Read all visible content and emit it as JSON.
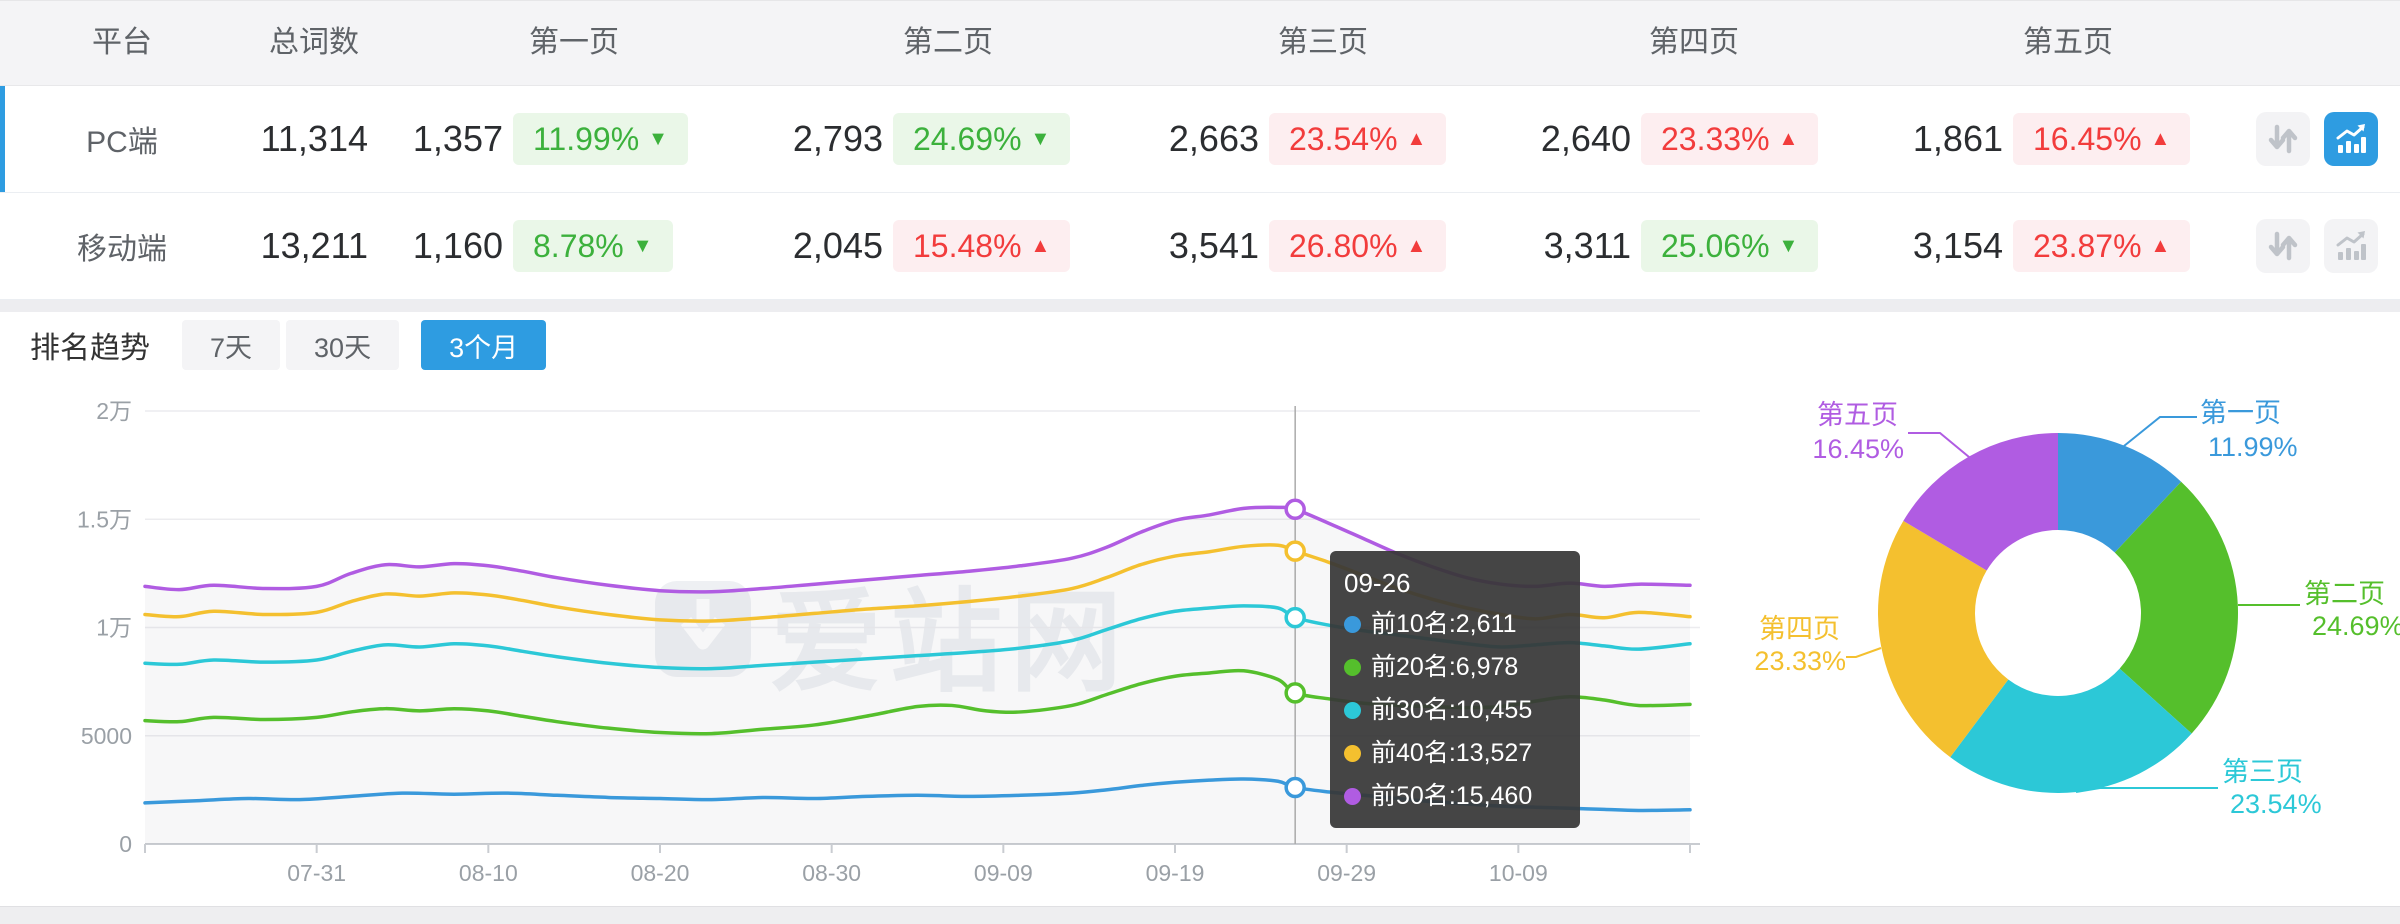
{
  "colors": {
    "accent": "#2e9ce1",
    "series_blue": "#3a99db",
    "series_green": "#55bf2c",
    "series_cyan": "#2cc8d7",
    "series_yellow": "#f4c02f",
    "series_purple": "#b05ce2",
    "badge_up_red": "#f23c3c",
    "badge_down_green": "#3cb13c"
  },
  "table": {
    "headers": [
      "平台",
      "总词数",
      "第一页",
      "第二页",
      "第三页",
      "第四页",
      "第五页"
    ],
    "rows": [
      {
        "platform": "PC端",
        "total": "11,314",
        "selected": true,
        "pages": [
          {
            "count": "1,357",
            "pct": "11.99%",
            "dir": "down",
            "tone": "green"
          },
          {
            "count": "2,793",
            "pct": "24.69%",
            "dir": "down",
            "tone": "green"
          },
          {
            "count": "2,663",
            "pct": "23.54%",
            "dir": "up",
            "tone": "red"
          },
          {
            "count": "2,640",
            "pct": "23.33%",
            "dir": "up",
            "tone": "red"
          },
          {
            "count": "1,861",
            "pct": "16.45%",
            "dir": "up",
            "tone": "red"
          }
        ]
      },
      {
        "platform": "移动端",
        "total": "13,211",
        "selected": false,
        "pages": [
          {
            "count": "1,160",
            "pct": "8.78%",
            "dir": "down",
            "tone": "green"
          },
          {
            "count": "2,045",
            "pct": "15.48%",
            "dir": "up",
            "tone": "red"
          },
          {
            "count": "3,541",
            "pct": "26.80%",
            "dir": "up",
            "tone": "red"
          },
          {
            "count": "3,311",
            "pct": "25.06%",
            "dir": "down",
            "tone": "green"
          },
          {
            "count": "3,154",
            "pct": "23.87%",
            "dir": "up",
            "tone": "red"
          }
        ]
      }
    ]
  },
  "trend_bar": {
    "label": "排名趋势",
    "tabs": [
      {
        "label": "7天",
        "active": false
      },
      {
        "label": "30天",
        "active": false
      },
      {
        "label": "3个月",
        "active": true
      }
    ]
  },
  "watermark": {
    "text": "爱站网"
  },
  "tooltip": {
    "date": "09-26",
    "rows": [
      {
        "name": "前10名",
        "value": "2,611"
      },
      {
        "name": "前20名",
        "value": "6,978"
      },
      {
        "name": "前30名",
        "value": "10,455"
      },
      {
        "name": "前40名",
        "value": "13,527"
      },
      {
        "name": "前50名",
        "value": "15,460"
      }
    ]
  },
  "chart_data": [
    {
      "type": "line",
      "title": "排名趋势 (3个月)",
      "x_unit": "day index from 07-21",
      "ylim": [
        0,
        20000
      ],
      "y_ticks": [
        "0",
        "5000",
        "1万",
        "1.5万",
        "2万"
      ],
      "x_ticks": [
        {
          "label": "07-31",
          "day": 10
        },
        {
          "label": "08-10",
          "day": 20
        },
        {
          "label": "08-20",
          "day": 30
        },
        {
          "label": "08-30",
          "day": 40
        },
        {
          "label": "09-09",
          "day": 50
        },
        {
          "label": "09-19",
          "day": 60
        },
        {
          "label": "09-29",
          "day": 70
        },
        {
          "label": "10-09",
          "day": 80
        }
      ],
      "grid": true,
      "hover": {
        "date": "09-26",
        "day": 67
      },
      "series": [
        {
          "name": "前10名",
          "color": "#3a99db",
          "points": [
            [
              0,
              1900
            ],
            [
              3,
              2000
            ],
            [
              6,
              2100
            ],
            [
              9,
              2050
            ],
            [
              12,
              2200
            ],
            [
              15,
              2350
            ],
            [
              18,
              2300
            ],
            [
              21,
              2350
            ],
            [
              24,
              2250
            ],
            [
              27,
              2150
            ],
            [
              30,
              2100
            ],
            [
              33,
              2050
            ],
            [
              36,
              2150
            ],
            [
              39,
              2100
            ],
            [
              42,
              2200
            ],
            [
              45,
              2250
            ],
            [
              48,
              2200
            ],
            [
              51,
              2250
            ],
            [
              54,
              2350
            ],
            [
              56,
              2500
            ],
            [
              58,
              2700
            ],
            [
              60,
              2850
            ],
            [
              62,
              2950
            ],
            [
              64,
              3000
            ],
            [
              66,
              2900
            ],
            [
              67,
              2611
            ],
            [
              69,
              2400
            ],
            [
              71,
              2250
            ],
            [
              73,
              2100
            ],
            [
              75,
              1950
            ],
            [
              77,
              1850
            ],
            [
              79,
              1750
            ],
            [
              81,
              1700
            ],
            [
              83,
              1650
            ],
            [
              85,
              1600
            ],
            [
              87,
              1550
            ],
            [
              90,
              1580
            ]
          ]
        },
        {
          "name": "前20名",
          "color": "#55bf2c",
          "points": [
            [
              0,
              5700
            ],
            [
              2,
              5650
            ],
            [
              4,
              5850
            ],
            [
              7,
              5750
            ],
            [
              10,
              5850
            ],
            [
              12,
              6100
            ],
            [
              14,
              6250
            ],
            [
              16,
              6150
            ],
            [
              18,
              6250
            ],
            [
              20,
              6150
            ],
            [
              22,
              5900
            ],
            [
              24,
              5650
            ],
            [
              27,
              5350
            ],
            [
              30,
              5150
            ],
            [
              33,
              5100
            ],
            [
              36,
              5300
            ],
            [
              39,
              5500
            ],
            [
              42,
              5900
            ],
            [
              45,
              6350
            ],
            [
              47,
              6400
            ],
            [
              49,
              6150
            ],
            [
              51,
              6100
            ],
            [
              54,
              6400
            ],
            [
              56,
              6900
            ],
            [
              58,
              7400
            ],
            [
              60,
              7750
            ],
            [
              62,
              7900
            ],
            [
              64,
              8000
            ],
            [
              66,
              7600
            ],
            [
              67,
              6978
            ],
            [
              69,
              6700
            ],
            [
              71,
              6500
            ],
            [
              73,
              6400
            ],
            [
              75,
              6350
            ],
            [
              77,
              6300
            ],
            [
              79,
              6350
            ],
            [
              81,
              6600
            ],
            [
              83,
              6800
            ],
            [
              85,
              6650
            ],
            [
              87,
              6400
            ],
            [
              90,
              6450
            ]
          ]
        },
        {
          "name": "前30名",
          "color": "#2cc8d7",
          "points": [
            [
              0,
              8350
            ],
            [
              2,
              8300
            ],
            [
              4,
              8500
            ],
            [
              7,
              8400
            ],
            [
              10,
              8500
            ],
            [
              12,
              8900
            ],
            [
              14,
              9200
            ],
            [
              16,
              9100
            ],
            [
              18,
              9250
            ],
            [
              20,
              9150
            ],
            [
              22,
              8900
            ],
            [
              24,
              8650
            ],
            [
              27,
              8350
            ],
            [
              30,
              8150
            ],
            [
              33,
              8100
            ],
            [
              36,
              8250
            ],
            [
              39,
              8400
            ],
            [
              42,
              8550
            ],
            [
              45,
              8700
            ],
            [
              48,
              8850
            ],
            [
              51,
              9050
            ],
            [
              54,
              9400
            ],
            [
              56,
              9900
            ],
            [
              58,
              10400
            ],
            [
              60,
              10750
            ],
            [
              62,
              10900
            ],
            [
              64,
              11000
            ],
            [
              66,
              10900
            ],
            [
              67,
              10455
            ],
            [
              69,
              10100
            ],
            [
              71,
              9850
            ],
            [
              73,
              9650
            ],
            [
              75,
              9450
            ],
            [
              77,
              9250
            ],
            [
              79,
              9100
            ],
            [
              81,
              9200
            ],
            [
              83,
              9300
            ],
            [
              85,
              9150
            ],
            [
              87,
              9000
            ],
            [
              90,
              9250
            ]
          ]
        },
        {
          "name": "前40名",
          "color": "#f4c02f",
          "points": [
            [
              0,
              10600
            ],
            [
              2,
              10500
            ],
            [
              4,
              10750
            ],
            [
              7,
              10600
            ],
            [
              10,
              10700
            ],
            [
              12,
              11200
            ],
            [
              14,
              11550
            ],
            [
              16,
              11450
            ],
            [
              18,
              11600
            ],
            [
              20,
              11500
            ],
            [
              22,
              11250
            ],
            [
              24,
              10950
            ],
            [
              27,
              10600
            ],
            [
              30,
              10350
            ],
            [
              33,
              10300
            ],
            [
              36,
              10450
            ],
            [
              39,
              10650
            ],
            [
              42,
              10850
            ],
            [
              45,
              11000
            ],
            [
              48,
              11200
            ],
            [
              51,
              11450
            ],
            [
              54,
              11800
            ],
            [
              56,
              12300
            ],
            [
              58,
              12900
            ],
            [
              60,
              13300
            ],
            [
              62,
              13500
            ],
            [
              64,
              13750
            ],
            [
              66,
              13800
            ],
            [
              67,
              13527
            ],
            [
              69,
              13000
            ],
            [
              71,
              12400
            ],
            [
              73,
              11800
            ],
            [
              75,
              11300
            ],
            [
              77,
              10900
            ],
            [
              79,
              10600
            ],
            [
              81,
              10400
            ],
            [
              83,
              10600
            ],
            [
              85,
              10450
            ],
            [
              87,
              10700
            ],
            [
              90,
              10500
            ]
          ]
        },
        {
          "name": "前50名",
          "color": "#b05ce2",
          "points": [
            [
              0,
              11900
            ],
            [
              2,
              11750
            ],
            [
              4,
              11950
            ],
            [
              7,
              11800
            ],
            [
              10,
              11900
            ],
            [
              12,
              12500
            ],
            [
              14,
              12900
            ],
            [
              16,
              12800
            ],
            [
              18,
              12950
            ],
            [
              20,
              12850
            ],
            [
              22,
              12600
            ],
            [
              24,
              12300
            ],
            [
              27,
              11950
            ],
            [
              30,
              11700
            ],
            [
              33,
              11650
            ],
            [
              36,
              11800
            ],
            [
              39,
              12000
            ],
            [
              42,
              12200
            ],
            [
              45,
              12400
            ],
            [
              48,
              12600
            ],
            [
              51,
              12850
            ],
            [
              54,
              13200
            ],
            [
              56,
              13700
            ],
            [
              58,
              14400
            ],
            [
              60,
              14950
            ],
            [
              62,
              15200
            ],
            [
              64,
              15500
            ],
            [
              66,
              15550
            ],
            [
              67,
              15460
            ],
            [
              69,
              14800
            ],
            [
              71,
              14100
            ],
            [
              73,
              13400
            ],
            [
              75,
              12800
            ],
            [
              77,
              12300
            ],
            [
              79,
              12000
            ],
            [
              81,
              11900
            ],
            [
              83,
              12050
            ],
            [
              85,
              11900
            ],
            [
              87,
              12000
            ],
            [
              90,
              11950
            ]
          ]
        }
      ]
    },
    {
      "type": "pie",
      "donut": true,
      "slices": [
        {
          "name": "第一页",
          "pct": 11.99,
          "label": "11.99%",
          "color": "#3a99db"
        },
        {
          "name": "第二页",
          "pct": 24.69,
          "label": "24.69%",
          "color": "#55bf2c"
        },
        {
          "name": "第三页",
          "pct": 23.54,
          "label": "23.54%",
          "color": "#2cc8d7"
        },
        {
          "name": "第四页",
          "pct": 23.33,
          "label": "23.33%",
          "color": "#f4c02f"
        },
        {
          "name": "第五页",
          "pct": 16.45,
          "label": "16.45%",
          "color": "#b05ce2"
        }
      ]
    }
  ]
}
